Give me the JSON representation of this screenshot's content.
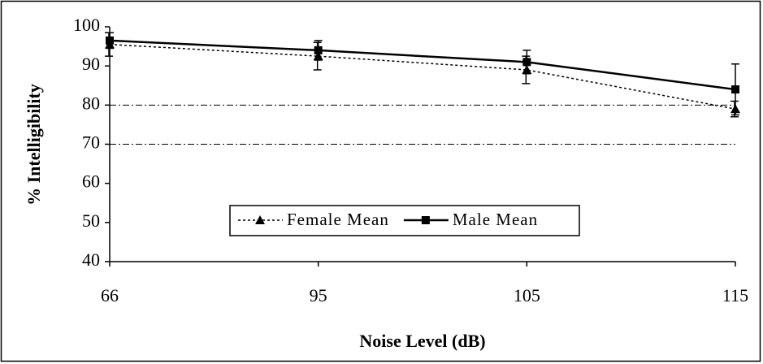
{
  "chart_data": {
    "type": "line",
    "x_label": "Noise Level (dB)",
    "y_label": "% Intelligibility",
    "categories": [
      "66",
      "95",
      "105",
      "115"
    ],
    "series": [
      {
        "name": "Female Mean",
        "color": "#000000",
        "style": "dotted",
        "marker": "triangle",
        "values": [
          95.5,
          92.5,
          89,
          79
        ],
        "errors": [
          3,
          3.5,
          3.5,
          2
        ]
      },
      {
        "name": "Male Mean",
        "color": "#000000",
        "style": "solid",
        "marker": "square",
        "values": [
          96.5,
          94,
          91,
          84
        ],
        "errors": [
          2,
          2.5,
          3,
          6.5
        ]
      }
    ],
    "reference_lines": [
      80,
      70
    ],
    "ylim": [
      40,
      100
    ],
    "yticks": [
      40,
      50,
      60,
      70,
      80,
      90,
      100
    ],
    "legend": "bottom-center"
  }
}
